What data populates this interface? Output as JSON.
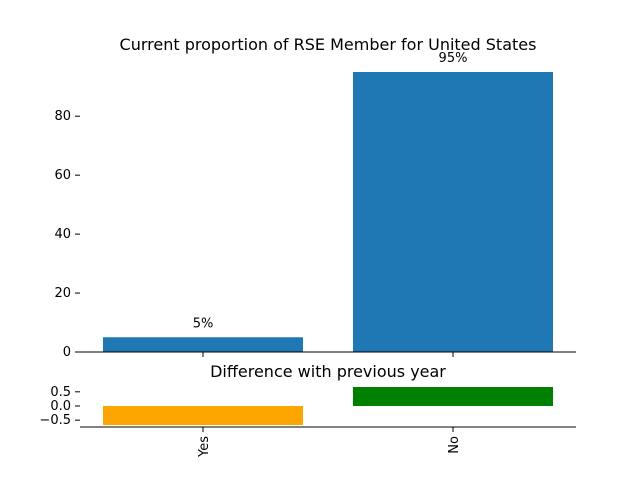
{
  "chart_data": [
    {
      "type": "bar",
      "title": "Current proportion of RSE Member for United States",
      "categories": [
        "Yes",
        "No"
      ],
      "values": [
        5,
        95
      ],
      "value_labels": [
        "5%",
        "95%"
      ],
      "ylim": [
        0,
        95
      ],
      "yticks": [
        0,
        20,
        40,
        60,
        80
      ],
      "bar_color": "#1f77b4",
      "grid": false
    },
    {
      "type": "bar",
      "title": "Difference with previous year",
      "categories": [
        "Yes",
        "No"
      ],
      "values": [
        -0.67,
        0.67
      ],
      "ylim": [
        -0.67,
        0.67
      ],
      "yticks": [
        -0.5,
        0.0,
        0.5
      ],
      "ytick_labels": [
        "−0.5",
        "0.0",
        "0.5"
      ],
      "colors": [
        "#ffa500",
        "#008000"
      ],
      "grid": false
    }
  ]
}
